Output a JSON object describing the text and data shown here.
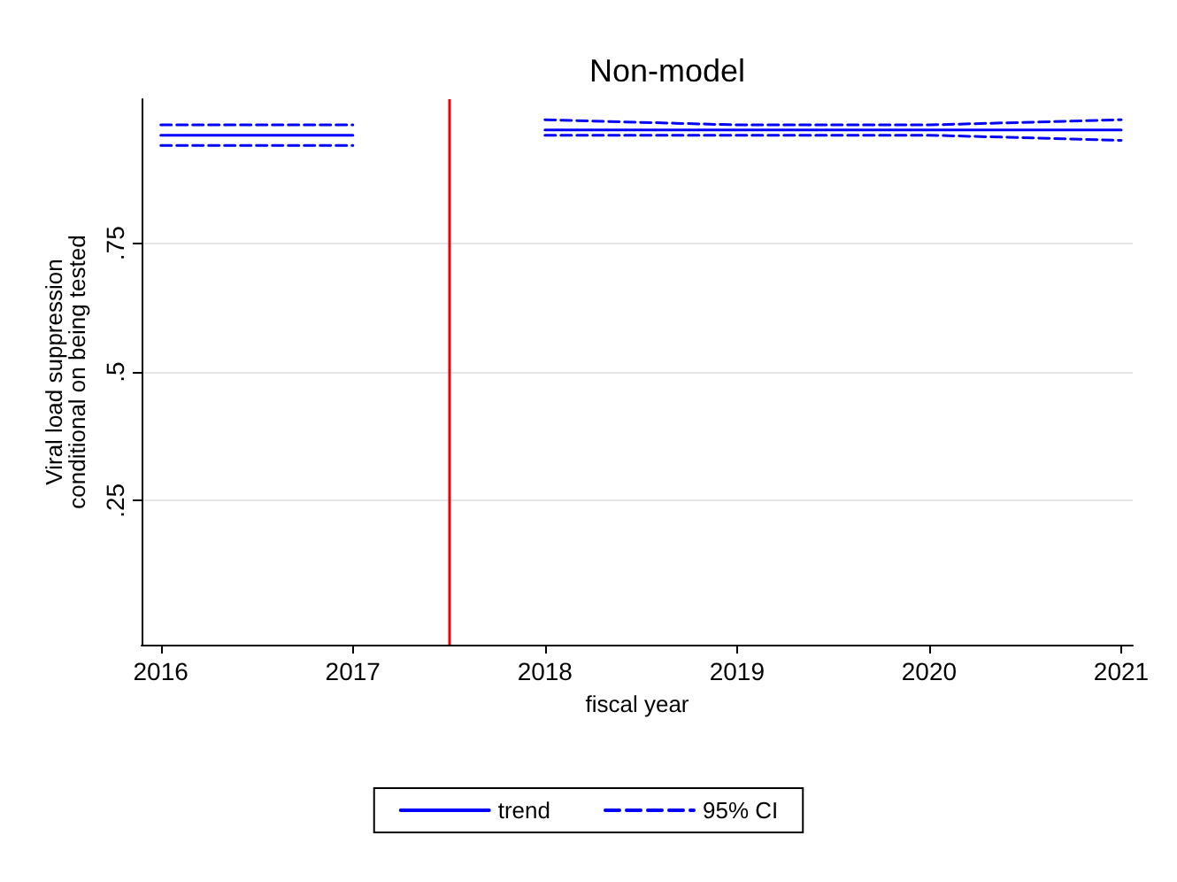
{
  "chart_data": {
    "type": "line",
    "title": "Non-model",
    "xlabel": "fiscal year",
    "ylabel": "Viral load suppression\nconditional on being tested",
    "xlim": [
      2015.9,
      2021.06
    ],
    "xticks": [
      2016,
      2017,
      2018,
      2019,
      2020,
      2021
    ],
    "ylim": [
      -0.03,
      1.03
    ],
    "yticks": [
      {
        "value": 0.25,
        "label": ".25"
      },
      {
        "value": 0.5,
        "label": ".5"
      },
      {
        "value": 0.75,
        "label": ".75"
      }
    ],
    "grid": "y",
    "legend": "bottom",
    "marker": "none",
    "series": [
      {
        "name": "trend",
        "color": "#0000ff",
        "line_style": "solid",
        "x": [
          2016,
          2017
        ],
        "values": [
          0.96,
          0.96
        ]
      },
      {
        "name": "95% CI",
        "color": "#0000ff",
        "line_style": "dashed",
        "x": [
          2016,
          2017
        ],
        "values": [
          0.98,
          0.98
        ]
      },
      {
        "color": "#0000ff",
        "line_style": "dashed",
        "x": [
          2016,
          2017
        ],
        "values": [
          0.94,
          0.94
        ]
      },
      {
        "color": "#0000ff",
        "line_style": "solid",
        "x": [
          2018,
          2019,
          2020,
          2021
        ],
        "values": [
          0.97,
          0.97,
          0.97,
          0.97
        ]
      },
      {
        "color": "#0000ff",
        "line_style": "dashed",
        "x": [
          2018,
          2019,
          2020,
          2021
        ],
        "values": [
          0.99,
          0.98,
          0.98,
          0.99
        ]
      },
      {
        "color": "#0000ff",
        "line_style": "dashed",
        "x": [
          2018,
          2019,
          2020,
          2021
        ],
        "values": [
          0.96,
          0.96,
          0.96,
          0.95
        ]
      }
    ],
    "ref_lines": [
      {
        "axis": "x",
        "value": 2017.5,
        "label": null,
        "color": "#e8000b"
      }
    ]
  }
}
